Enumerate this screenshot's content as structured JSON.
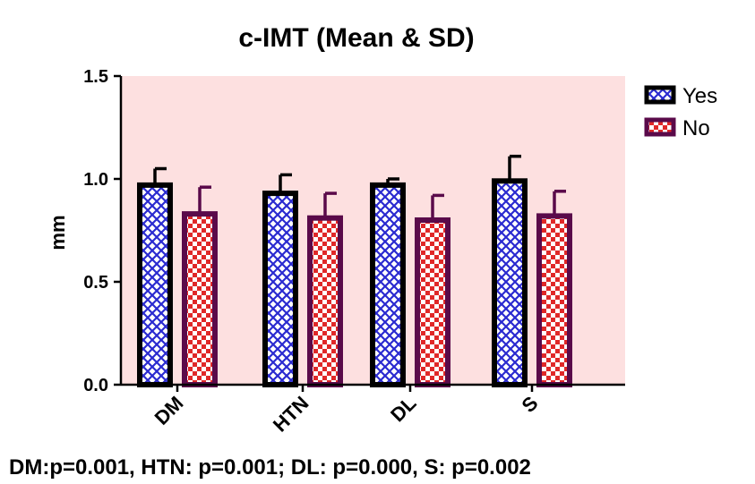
{
  "chart_data": {
    "type": "bar",
    "title": "c-IMT (Mean & SD)",
    "xlabel": "",
    "ylabel": "mm",
    "ylim": [
      0,
      1.5
    ],
    "yticks": [
      "0.0",
      "0.5",
      "1.0",
      "1.5"
    ],
    "categories": [
      "DM",
      "HTN",
      "DL",
      "S"
    ],
    "series": [
      {
        "name": "Yes",
        "values": [
          0.97,
          0.93,
          0.97,
          0.99
        ],
        "sd": [
          0.08,
          0.09,
          0.03,
          0.12
        ],
        "color": "#3333cc",
        "pattern": "crosshatch-blue"
      },
      {
        "name": "No",
        "values": [
          0.83,
          0.81,
          0.8,
          0.82
        ],
        "sd": [
          0.13,
          0.12,
          0.12,
          0.12
        ],
        "color": "#e03030",
        "pattern": "checker-red"
      }
    ],
    "grid": false,
    "legend_position": "top-right",
    "plot_background": "#fde0e0",
    "annotation": "DM:p=0.001, HTN: p=0.001; DL: p=0.000, S: p=0.002"
  }
}
